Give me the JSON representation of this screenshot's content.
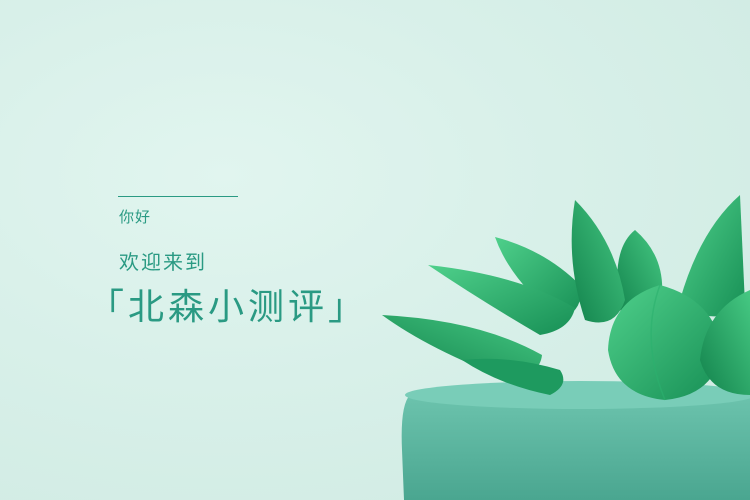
{
  "greeting": "你好",
  "welcome": "欢迎来到",
  "title": "「北森小测评」",
  "colors": {
    "background": "#d6efe8",
    "accent_text": "#2a9a83",
    "leaf_dark": "#1f9c62",
    "leaf_light": "#3ec57e",
    "pot": "#5fb9a2"
  },
  "illustration": "succulent-in-pot"
}
